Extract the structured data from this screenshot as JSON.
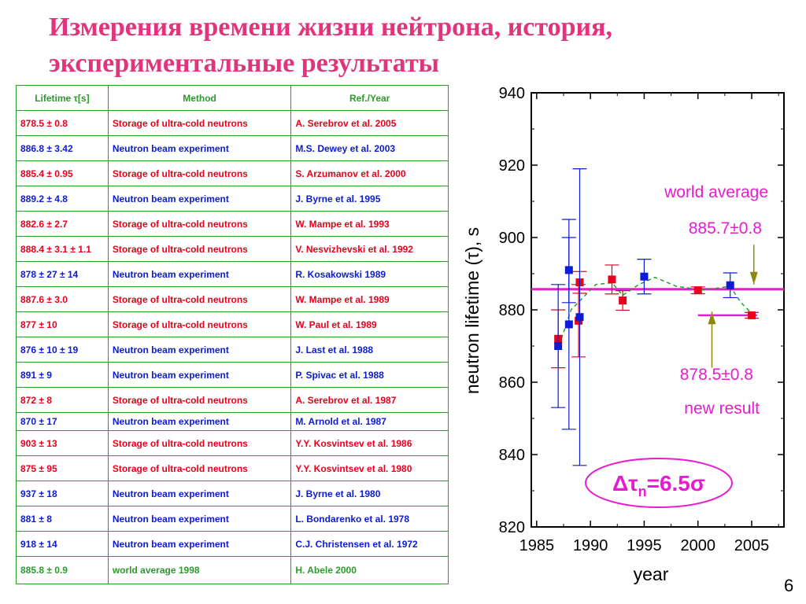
{
  "title": {
    "line1": "Измерения времени жизни нейтрона, история,",
    "line2": "экспериментальные результаты"
  },
  "table": {
    "headers": [
      "Lifetime τ[s]",
      "Method",
      "Ref./Year"
    ],
    "rows": [
      {
        "lifetime": "878.5 ± 0.8",
        "method": "Storage of ultra-cold neutrons",
        "ref": "A. Serebrov et al. 2005",
        "color": "red"
      },
      {
        "lifetime": "886.8 ± 3.42",
        "method": "Neutron beam experiment",
        "ref": "M.S. Dewey et al. 2003",
        "color": "blue"
      },
      {
        "lifetime": "885.4 ± 0.95",
        "method": "Storage of ultra-cold neutrons",
        "ref": "S. Arzumanov et al. 2000",
        "color": "red"
      },
      {
        "lifetime": "889.2 ± 4.8",
        "method": "Neutron beam experiment",
        "ref": "J. Byrne et al. 1995",
        "color": "blue"
      },
      {
        "lifetime": "882.6 ± 2.7",
        "method": "Storage of ultra-cold neutrons",
        "ref": "W. Mampe et al. 1993",
        "color": "red"
      },
      {
        "lifetime": "888.4 ± 3.1 ± 1.1",
        "method": "Storage of ultra-cold neutrons",
        "ref": "V. Nesvizhevski et al. 1992",
        "color": "red"
      },
      {
        "lifetime": "878 ± 27 ± 14",
        "method": "Neutron beam experiment",
        "ref": "R. Kosakowski 1989",
        "color": "blue"
      },
      {
        "lifetime": "887.6 ± 3.0",
        "method": "Storage of ultra-cold neutrons",
        "ref": "W. Mampe et al. 1989",
        "color": "red"
      },
      {
        "lifetime": "877 ± 10",
        "method": "Storage of ultra-cold neutrons",
        "ref": "W. Paul et al. 1989",
        "color": "red"
      },
      {
        "lifetime": "876 ± 10 ± 19",
        "method": "Neutron beam experiment",
        "ref": "J. Last et al. 1988",
        "color": "blue"
      },
      {
        "lifetime": "891 ± 9",
        "method": "Neutron beam experiment",
        "ref": "P. Spivac et al. 1988",
        "color": "blue"
      },
      {
        "lifetime": "872 ± 8",
        "method": "Storage of ultra-cold neutrons",
        "ref": "A. Serebrov et al. 1987",
        "color": "red"
      },
      {
        "lifetime": "870 ± 17",
        "method": "Neutron beam experiment",
        "ref": "M. Arnold et al. 1987",
        "color": "blue",
        "short": true
      },
      {
        "lifetime": "903 ± 13",
        "method": "Storage of ultra-cold neutrons",
        "ref": "Y.Y. Kosvintsev et al. 1986",
        "color": "red"
      },
      {
        "lifetime": "875 ± 95",
        "method": "Storage of ultra-cold neutrons",
        "ref": "Y.Y. Kosvintsev et al. 1980",
        "color": "red"
      },
      {
        "lifetime": "937 ± 18",
        "method": "Neutron beam experiment",
        "ref": "J. Byrne et al. 1980",
        "color": "blue"
      },
      {
        "lifetime": "881 ± 8",
        "method": "Neutron beam experiment",
        "ref": "L. Bondarenko et al. 1978",
        "color": "blue"
      },
      {
        "lifetime": "918 ± 14",
        "method": "Neutron beam experiment",
        "ref": "C.J. Christensen et al. 1972",
        "color": "blue"
      },
      {
        "lifetime": "885.8 ± 0.9",
        "method": "world average 1998",
        "ref": "H. Abele 2000",
        "color": "green",
        "last": true
      }
    ]
  },
  "chart_data": {
    "type": "scatter",
    "xlabel": "year",
    "ylabel": "neutron lifetime (τ), s",
    "xlim": [
      1984.5,
      2008
    ],
    "ylim": [
      820,
      940
    ],
    "xticks": [
      1985,
      1990,
      1995,
      2000,
      2005
    ],
    "yticks": [
      820,
      840,
      860,
      880,
      900,
      920,
      940
    ],
    "series": [
      {
        "color": "#e8001c",
        "points": [
          {
            "x": 1987,
            "y": 872,
            "err": 8
          },
          {
            "x": 1988.9,
            "y": 877,
            "err": 10
          },
          {
            "x": 1989,
            "y": 887.6,
            "err": 3
          },
          {
            "x": 1992,
            "y": 888.4,
            "err": 4
          },
          {
            "x": 1993,
            "y": 882.6,
            "err": 2.7
          },
          {
            "x": 2000,
            "y": 885.4,
            "err": 0.95
          },
          {
            "x": 2005,
            "y": 878.5,
            "err": 0.8
          }
        ]
      },
      {
        "color": "#0b1bd6",
        "points": [
          {
            "x": 1987,
            "y": 870,
            "err": 17
          },
          {
            "x": 1988,
            "y": 891,
            "err": 9
          },
          {
            "x": 1988,
            "y": 876,
            "err": 29
          },
          {
            "x": 1989,
            "y": 878,
            "err": 41
          },
          {
            "x": 1995,
            "y": 889.2,
            "err": 4.8
          },
          {
            "x": 2003,
            "y": 886.8,
            "err": 3.42
          }
        ]
      }
    ],
    "trend_line": {
      "color": "#2e9a2e",
      "points": [
        [
          1987.3,
          872
        ],
        [
          1988.2,
          880
        ],
        [
          1989.5,
          884
        ],
        [
          1990.5,
          887
        ],
        [
          1992,
          887.5
        ],
        [
          1993,
          884
        ],
        [
          1994.5,
          887
        ],
        [
          1996,
          889
        ],
        [
          1998,
          886.5
        ],
        [
          2000.5,
          885.5
        ],
        [
          2003,
          886.5
        ],
        [
          2004,
          882
        ],
        [
          2005.2,
          878.5
        ]
      ]
    },
    "world_average": {
      "value": 885.7,
      "color": "#e81ccf"
    },
    "new_result_line": {
      "value": 878.5,
      "x_from": 2000,
      "x_to": 2005.5
    },
    "annotations": {
      "world_average_label": "world average",
      "world_average_value": "885.7±0.8",
      "new_result_value": "878.5±0.8",
      "new_result_label": "new result",
      "delta_base": "Δτ",
      "delta_sub": "n",
      "delta_rest": "=6.5σ"
    }
  },
  "page_number": "6"
}
